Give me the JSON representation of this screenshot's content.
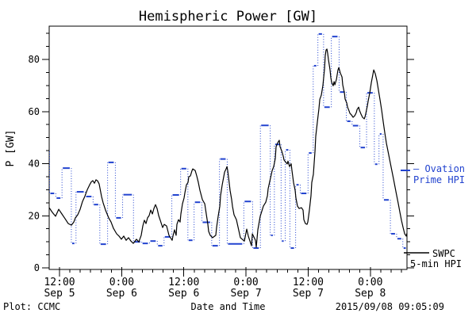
{
  "title": "Hemispheric Power [GW]",
  "footer": {
    "left": "Plot: CCMC",
    "center": "Date and Time",
    "right": "2015/09/08 09:05:09"
  },
  "legend": {
    "ovation_line1": "– Ovation",
    "ovation_line2": "Prime HPI",
    "swpc_line1": "SWPC",
    "swpc_line2": "5-min HPI"
  },
  "colors": {
    "ovation_blue": "#2243cf",
    "swpc_black": "#000000",
    "frame": "#000000",
    "background": "#ffffff"
  },
  "chart_data": {
    "type": "line",
    "title": "Hemispheric Power [GW]",
    "xlabel": "Date and Time",
    "ylabel": "P [GW]",
    "x_unit": "hours since 2015 Sep 5 00:00",
    "xlim": [
      10,
      79.08
    ],
    "ylim": [
      -0.6,
      92.8
    ],
    "grid": false,
    "y_major_ticks": [
      0,
      20,
      40,
      60,
      80
    ],
    "y_minor_step": 5,
    "x_minor_step_hours": 2,
    "x_major_ticks": [
      {
        "hour": 12,
        "time": "12:00",
        "date": "Sep 5"
      },
      {
        "hour": 24,
        "time": "0:00",
        "date": "Sep 6"
      },
      {
        "hour": 36,
        "time": "12:00",
        "date": "Sep 6"
      },
      {
        "hour": 48,
        "time": "0:00",
        "date": "Sep 7"
      },
      {
        "hour": 60,
        "time": "12:00",
        "date": "Sep 7"
      },
      {
        "hour": 72,
        "time": "0:00",
        "date": "Sep 8"
      }
    ],
    "series": [
      {
        "name": "Ovation Prime HPI",
        "style": "steps-dashed-dotted",
        "color": "#2243cf",
        "lead_in_value": 44.8,
        "steps": [
          [
            10.0,
            11.2,
            28.6
          ],
          [
            11.2,
            12.4,
            26.8
          ],
          [
            12.4,
            14.2,
            38.3
          ],
          [
            14.2,
            15.1,
            9.4
          ],
          [
            15.1,
            16.9,
            29.2
          ],
          [
            16.9,
            18.4,
            27.4
          ],
          [
            18.4,
            19.7,
            24.3
          ],
          [
            19.7,
            21.2,
            9.1
          ],
          [
            21.2,
            22.7,
            40.5
          ],
          [
            22.7,
            24.1,
            19.2
          ],
          [
            24.1,
            26.2,
            28.1
          ],
          [
            26.2,
            27.8,
            10.0
          ],
          [
            27.8,
            29.3,
            9.4
          ],
          [
            29.3,
            30.8,
            10.3
          ],
          [
            30.8,
            32.1,
            8.5
          ],
          [
            32.1,
            33.6,
            11.9
          ],
          [
            33.6,
            35.3,
            28.0
          ],
          [
            35.3,
            36.7,
            38.1
          ],
          [
            36.7,
            37.9,
            10.6
          ],
          [
            37.9,
            39.4,
            25.2
          ],
          [
            39.4,
            41.3,
            17.5
          ],
          [
            41.3,
            42.8,
            8.5
          ],
          [
            42.8,
            44.3,
            41.8
          ],
          [
            44.3,
            47.5,
            9.2
          ],
          [
            47.5,
            49.2,
            25.5
          ],
          [
            49.2,
            50.7,
            7.6
          ],
          [
            50.7,
            52.6,
            54.7
          ],
          [
            52.6,
            53.4,
            12.5
          ],
          [
            53.4,
            54.7,
            47.4
          ],
          [
            54.7,
            55.5,
            10.3
          ],
          [
            55.5,
            56.4,
            45.3
          ],
          [
            56.4,
            57.5,
            7.6
          ],
          [
            57.5,
            58.4,
            31.9
          ],
          [
            58.4,
            59.9,
            28.6
          ],
          [
            59.9,
            60.9,
            44.1
          ],
          [
            60.9,
            61.8,
            77.6
          ],
          [
            61.8,
            62.9,
            89.8
          ],
          [
            62.9,
            64.4,
            61.7
          ],
          [
            64.4,
            65.9,
            88.8
          ],
          [
            65.9,
            67.3,
            67.5
          ],
          [
            67.3,
            68.4,
            56.3
          ],
          [
            68.4,
            69.9,
            54.6
          ],
          [
            69.9,
            71.2,
            46.2
          ],
          [
            71.2,
            72.7,
            67.2
          ],
          [
            72.7,
            73.6,
            39.8
          ],
          [
            73.6,
            74.4,
            51.4
          ],
          [
            74.4,
            75.8,
            26.1
          ],
          [
            75.8,
            77.0,
            13.1
          ],
          [
            77.0,
            78.2,
            11.2
          ],
          [
            78.2,
            79.08,
            7.6
          ]
        ]
      },
      {
        "name": "SWPC 5-min HPI",
        "style": "solid",
        "color": "#000000",
        "points": [
          [
            10.0,
            23.1
          ],
          [
            10.61,
            21.3
          ],
          [
            11.23,
            19.8
          ],
          [
            11.84,
            22.5
          ],
          [
            12.45,
            20.7
          ],
          [
            13.06,
            18.9
          ],
          [
            13.68,
            17.0
          ],
          [
            14.29,
            16.4
          ],
          [
            14.75,
            17.6
          ],
          [
            15.06,
            19.2
          ],
          [
            15.51,
            20.4
          ],
          [
            15.97,
            22.5
          ],
          [
            16.43,
            25.5
          ],
          [
            16.89,
            27.5
          ],
          [
            17.35,
            30.0
          ],
          [
            17.81,
            31.9
          ],
          [
            18.12,
            33.0
          ],
          [
            18.43,
            33.5
          ],
          [
            18.73,
            32.5
          ],
          [
            19.04,
            33.8
          ],
          [
            19.34,
            33.4
          ],
          [
            19.65,
            32.2
          ],
          [
            20.11,
            27.4
          ],
          [
            20.42,
            25.0
          ],
          [
            20.88,
            22.2
          ],
          [
            21.49,
            19.2
          ],
          [
            21.95,
            17.6
          ],
          [
            22.41,
            15.2
          ],
          [
            23.02,
            13.1
          ],
          [
            23.48,
            12.2
          ],
          [
            23.94,
            11.0
          ],
          [
            24.4,
            12.2
          ],
          [
            24.86,
            10.6
          ],
          [
            25.32,
            11.6
          ],
          [
            25.78,
            10.3
          ],
          [
            26.24,
            9.4
          ],
          [
            26.85,
            11.0
          ],
          [
            27.31,
            10.0
          ],
          [
            27.77,
            12.5
          ],
          [
            28.08,
            16.1
          ],
          [
            28.38,
            18.3
          ],
          [
            28.69,
            17.0
          ],
          [
            29.0,
            19.2
          ],
          [
            29.3,
            20.1
          ],
          [
            29.61,
            22.2
          ],
          [
            29.92,
            20.7
          ],
          [
            30.22,
            22.8
          ],
          [
            30.53,
            24.3
          ],
          [
            30.83,
            22.8
          ],
          [
            31.14,
            20.1
          ],
          [
            31.45,
            18.3
          ],
          [
            31.91,
            15.5
          ],
          [
            32.21,
            16.7
          ],
          [
            32.67,
            16.1
          ],
          [
            33.13,
            12.5
          ],
          [
            33.74,
            10.6
          ],
          [
            33.9,
            12.2
          ],
          [
            34.2,
            14.6
          ],
          [
            34.51,
            12.5
          ],
          [
            34.66,
            16.7
          ],
          [
            34.97,
            18.5
          ],
          [
            35.28,
            17.6
          ],
          [
            35.43,
            20.7
          ],
          [
            35.74,
            24.6
          ],
          [
            36.04,
            26.8
          ],
          [
            36.2,
            28.9
          ],
          [
            36.5,
            31.9
          ],
          [
            36.81,
            32.8
          ],
          [
            36.96,
            35.0
          ],
          [
            37.27,
            35.3
          ],
          [
            37.58,
            37.4
          ],
          [
            37.73,
            38.0
          ],
          [
            38.19,
            37.4
          ],
          [
            38.49,
            35.3
          ],
          [
            38.8,
            32.8
          ],
          [
            39.11,
            29.8
          ],
          [
            39.57,
            26.2
          ],
          [
            40.03,
            24.6
          ],
          [
            40.33,
            20.7
          ],
          [
            40.64,
            16.7
          ],
          [
            40.79,
            14.0
          ],
          [
            41.1,
            12.5
          ],
          [
            41.56,
            11.6
          ],
          [
            42.17,
            12.5
          ],
          [
            42.32,
            15.5
          ],
          [
            42.63,
            19.8
          ],
          [
            42.94,
            23.7
          ],
          [
            43.09,
            27.7
          ],
          [
            43.4,
            31.9
          ],
          [
            43.7,
            35.0
          ],
          [
            43.86,
            36.8
          ],
          [
            44.16,
            38.0
          ],
          [
            44.32,
            38.9
          ],
          [
            44.47,
            37.4
          ],
          [
            44.62,
            35.0
          ],
          [
            44.93,
            29.8
          ],
          [
            45.23,
            26.2
          ],
          [
            45.39,
            23.7
          ],
          [
            45.69,
            20.4
          ],
          [
            46.15,
            18.5
          ],
          [
            46.92,
            11.6
          ],
          [
            47.68,
            10.3
          ],
          [
            48.14,
            14.9
          ],
          [
            48.45,
            12.2
          ],
          [
            49.06,
            8.5
          ],
          [
            49.22,
            13.1
          ],
          [
            49.83,
            10.6
          ],
          [
            49.98,
            7.9
          ],
          [
            50.29,
            14.6
          ],
          [
            50.75,
            19.8
          ],
          [
            51.36,
            23.7
          ],
          [
            51.82,
            25.2
          ],
          [
            52.13,
            27.7
          ],
          [
            52.28,
            30.4
          ],
          [
            52.89,
            35.9
          ],
          [
            53.05,
            37.4
          ],
          [
            53.35,
            38.9
          ],
          [
            53.66,
            42.0
          ],
          [
            53.81,
            46.5
          ],
          [
            54.12,
            48.0
          ],
          [
            54.42,
            49.0
          ],
          [
            54.58,
            46.5
          ],
          [
            54.88,
            45.0
          ],
          [
            55.19,
            42.9
          ],
          [
            55.34,
            41.4
          ],
          [
            55.95,
            39.9
          ],
          [
            56.11,
            41.0
          ],
          [
            56.41,
            38.9
          ],
          [
            56.72,
            40.0
          ],
          [
            56.87,
            37.4
          ],
          [
            57.18,
            32.8
          ],
          [
            57.49,
            29.8
          ],
          [
            57.64,
            26.8
          ],
          [
            57.95,
            23.7
          ],
          [
            58.25,
            22.8
          ],
          [
            58.71,
            23.1
          ],
          [
            59.02,
            22.2
          ],
          [
            59.17,
            18.5
          ],
          [
            59.48,
            17.0
          ],
          [
            59.78,
            16.7
          ],
          [
            59.94,
            17.6
          ],
          [
            60.24,
            22.2
          ],
          [
            60.55,
            27.7
          ],
          [
            60.7,
            32.8
          ],
          [
            61.01,
            35.9
          ],
          [
            61.32,
            45.0
          ],
          [
            61.47,
            50.5
          ],
          [
            61.78,
            56.2
          ],
          [
            62.08,
            61.1
          ],
          [
            62.24,
            64.7
          ],
          [
            62.54,
            66.3
          ],
          [
            62.85,
            70.0
          ],
          [
            63.16,
            76.5
          ],
          [
            63.31,
            81.5
          ],
          [
            63.46,
            83.6
          ],
          [
            63.62,
            84.0
          ],
          [
            63.77,
            82.4
          ],
          [
            63.92,
            80.0
          ],
          [
            64.23,
            76.0
          ],
          [
            64.38,
            73.0
          ],
          [
            64.54,
            71.2
          ],
          [
            64.84,
            69.9
          ],
          [
            65.0,
            71.5
          ],
          [
            65.15,
            70.3
          ],
          [
            65.46,
            72.4
          ],
          [
            65.76,
            76.0
          ],
          [
            65.92,
            76.9
          ],
          [
            66.22,
            74.8
          ],
          [
            66.53,
            73.3
          ],
          [
            66.68,
            70.3
          ],
          [
            66.99,
            67.2
          ],
          [
            67.14,
            64.8
          ],
          [
            67.45,
            63.3
          ],
          [
            67.6,
            61.7
          ],
          [
            67.91,
            60.2
          ],
          [
            68.06,
            59.3
          ],
          [
            68.37,
            58.7
          ],
          [
            68.68,
            57.8
          ],
          [
            68.98,
            58.4
          ],
          [
            69.29,
            59.6
          ],
          [
            69.44,
            60.8
          ],
          [
            69.75,
            61.7
          ],
          [
            69.9,
            60.5
          ],
          [
            70.21,
            59.0
          ],
          [
            70.51,
            57.8
          ],
          [
            70.82,
            57.2
          ],
          [
            70.97,
            58.0
          ],
          [
            71.13,
            59.3
          ],
          [
            71.28,
            60.8
          ],
          [
            71.43,
            62.3
          ],
          [
            71.59,
            64.1
          ],
          [
            71.89,
            67.2
          ],
          [
            72.2,
            71.2
          ],
          [
            72.66,
            76.0
          ],
          [
            72.97,
            74.5
          ],
          [
            73.27,
            71.8
          ],
          [
            73.58,
            68.1
          ],
          [
            73.89,
            64.4
          ],
          [
            74.19,
            60.5
          ],
          [
            74.5,
            56.0
          ],
          [
            74.81,
            51.7
          ],
          [
            75.11,
            47.8
          ],
          [
            75.57,
            43.2
          ],
          [
            76.03,
            38.6
          ],
          [
            76.49,
            34.0
          ],
          [
            76.95,
            29.2
          ],
          [
            77.41,
            24.6
          ],
          [
            77.72,
            21.3
          ],
          [
            78.02,
            18.2
          ],
          [
            78.33,
            15.5
          ],
          [
            78.64,
            13.1
          ],
          [
            78.94,
            12.2
          ],
          [
            79.08,
            13.4
          ]
        ]
      }
    ]
  }
}
